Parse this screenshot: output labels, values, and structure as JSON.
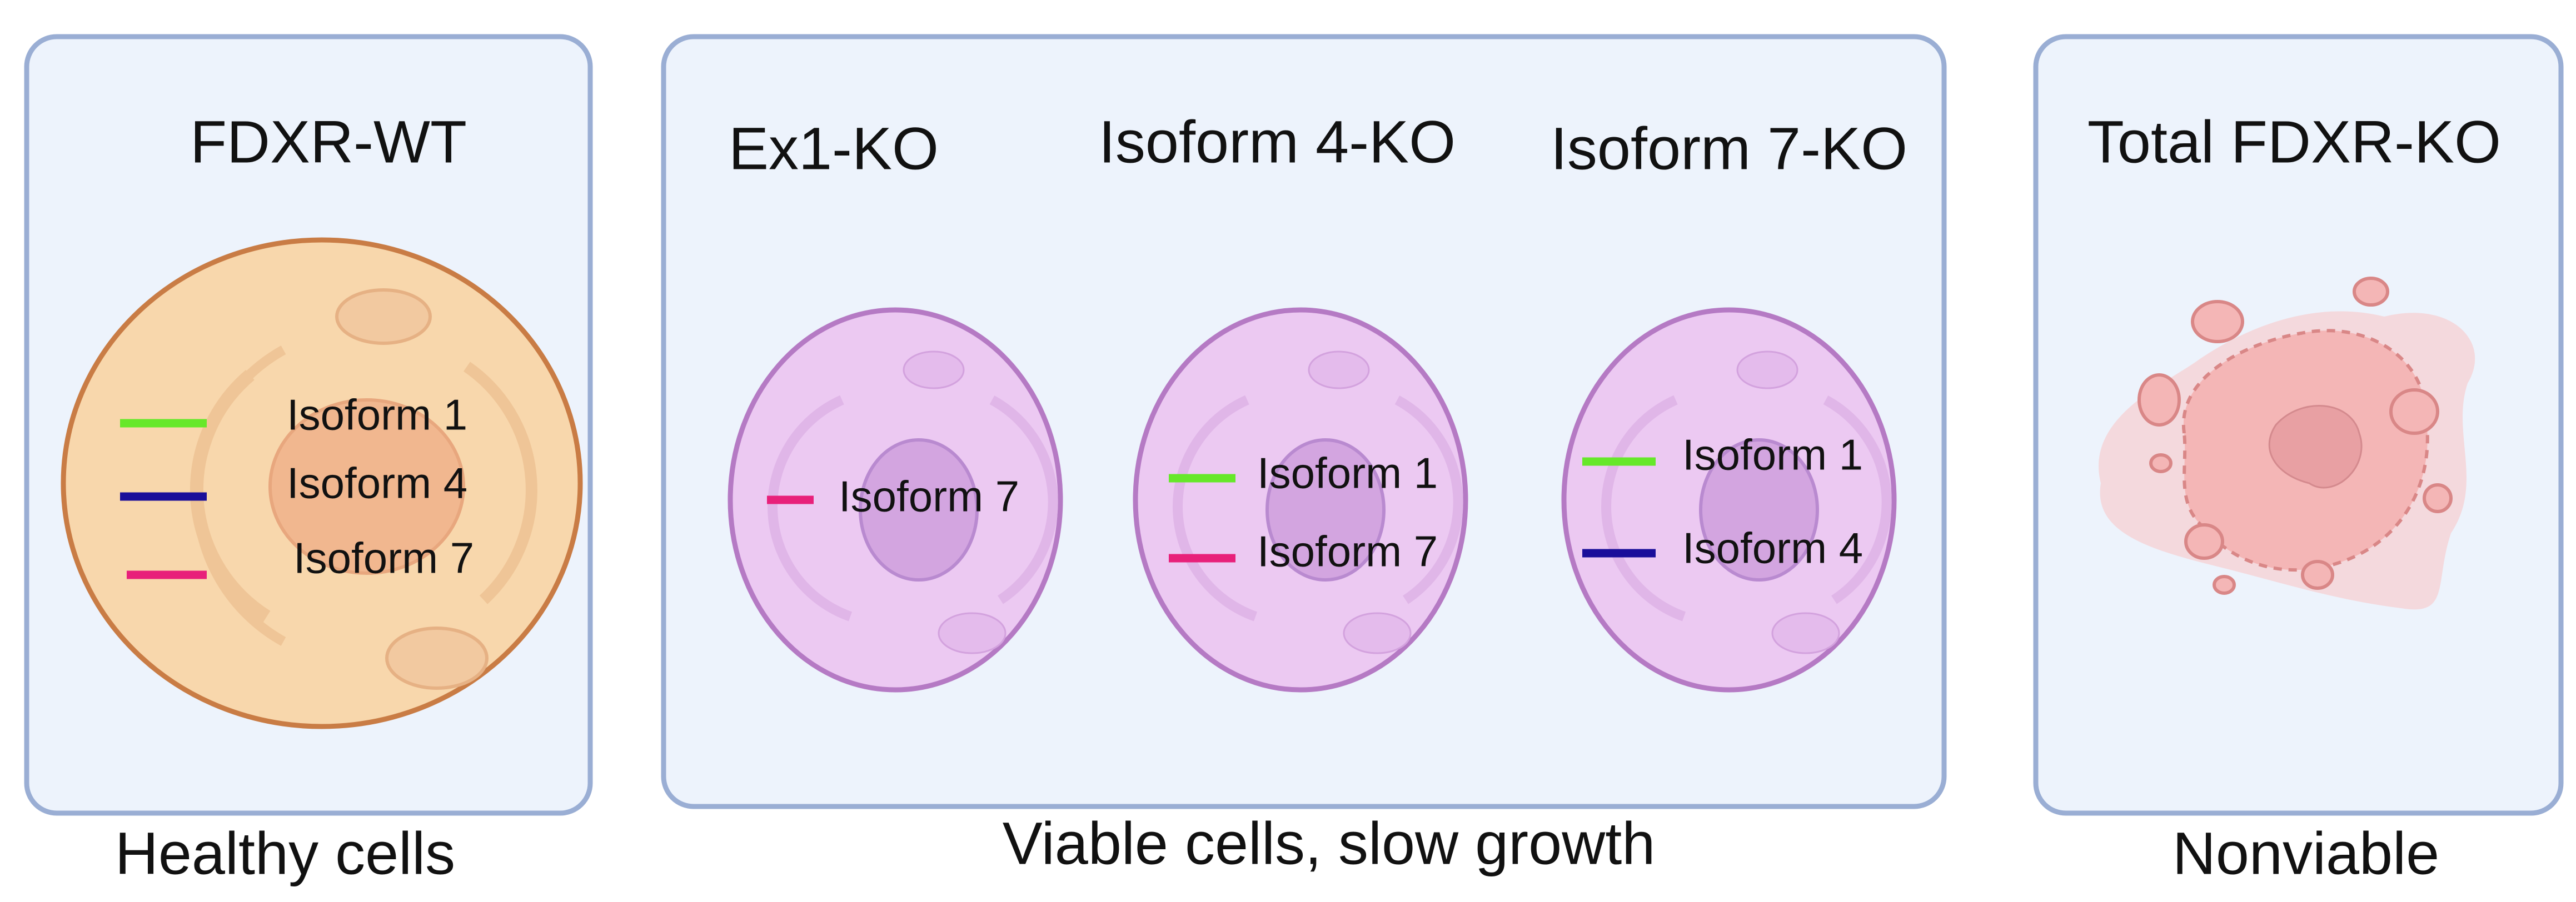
{
  "panels": [
    {
      "caption": "Healthy cells",
      "cells": [
        {
          "title": "FDXR-WT",
          "isoforms": [
            "Isoform 1",
            "Isoform 4",
            "Isoform 7"
          ]
        }
      ]
    },
    {
      "caption": "Viable cells, slow growth",
      "cells": [
        {
          "title": "Ex1-KO",
          "isoforms": [
            "Isoform 7"
          ]
        },
        {
          "title": "Isoform 4-KO",
          "isoforms": [
            "Isoform 1",
            "Isoform 7"
          ]
        },
        {
          "title": "Isoform 7-KO",
          "isoforms": [
            "Isoform 1",
            "Isoform 4"
          ]
        }
      ]
    },
    {
      "caption": "Nonviable",
      "cells": [
        {
          "title": "Total FDXR-KO"
        }
      ]
    }
  ]
}
